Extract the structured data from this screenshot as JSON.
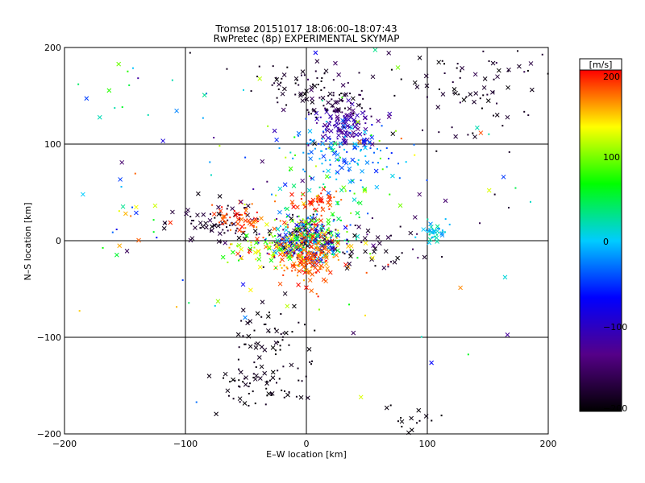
{
  "chart_data": {
    "type": "scatter",
    "title": "Tromsø 20151017 18:06:00–18:07:43",
    "subtitle": "RwPretec (8p) EXPERIMENTAL SKYMAP",
    "xlabel": "E–W location [km]",
    "ylabel": "N–S location [km]",
    "xlim": [
      -200,
      200
    ],
    "ylim": [
      -200,
      200
    ],
    "xticks": [
      "−200",
      "−100",
      "0",
      "100",
      "200"
    ],
    "yticks": [
      "−200",
      "−100",
      "0",
      "100",
      "200"
    ],
    "grid": true,
    "colorbar": {
      "title": "[m/s]",
      "range": [
        -200,
        200
      ],
      "ticks": [
        "200",
        "100",
        "0",
        "−100",
        "−200"
      ],
      "colormap": [
        "#000000",
        "#550088",
        "#0000ff",
        "#00ccff",
        "#00ff00",
        "#ffff00",
        "#ff0000"
      ]
    },
    "marker_types": [
      "x",
      "dot"
    ],
    "clusters": [
      {
        "x": 0,
        "y": 0,
        "sx": 18,
        "sy": 12,
        "n": 420,
        "v": [
          -200,
          200
        ]
      },
      {
        "x": 2,
        "y": -22,
        "sx": 10,
        "sy": 12,
        "n": 140,
        "v": [
          150,
          200
        ]
      },
      {
        "x": 28,
        "y": 120,
        "sx": 14,
        "sy": 10,
        "n": 110,
        "v": [
          -140,
          -100
        ]
      },
      {
        "x": 30,
        "y": 95,
        "sx": 22,
        "sy": 14,
        "n": 90,
        "v": [
          -60,
          10
        ]
      },
      {
        "x": 20,
        "y": 145,
        "sx": 18,
        "sy": 12,
        "n": 70,
        "v": [
          -200,
          -150
        ]
      },
      {
        "x": -10,
        "y": 165,
        "sx": 20,
        "sy": 10,
        "n": 40,
        "v": [
          -200,
          -170
        ]
      },
      {
        "x": 10,
        "y": 42,
        "sx": 10,
        "sy": 6,
        "n": 45,
        "v": [
          170,
          200
        ]
      },
      {
        "x": 15,
        "y": 55,
        "sx": 25,
        "sy": 25,
        "n": 80,
        "v": [
          -40,
          120
        ]
      },
      {
        "x": -70,
        "y": 20,
        "sx": 18,
        "sy": 10,
        "n": 70,
        "v": [
          -200,
          -160
        ]
      },
      {
        "x": -55,
        "y": 20,
        "sx": 12,
        "sy": 8,
        "n": 50,
        "v": [
          160,
          200
        ]
      },
      {
        "x": -45,
        "y": -12,
        "sx": 15,
        "sy": 8,
        "n": 40,
        "v": [
          60,
          200
        ]
      },
      {
        "x": 105,
        "y": 8,
        "sx": 6,
        "sy": 6,
        "n": 40,
        "v": [
          -20,
          30
        ]
      },
      {
        "x": 60,
        "y": -10,
        "sx": 25,
        "sy": 15,
        "n": 40,
        "v": [
          -200,
          -150
        ]
      },
      {
        "x": -30,
        "y": -100,
        "sx": 18,
        "sy": 20,
        "n": 60,
        "v": [
          -200,
          -180
        ]
      },
      {
        "x": -40,
        "y": -150,
        "sx": 20,
        "sy": 12,
        "n": 60,
        "v": [
          -200,
          -180
        ]
      },
      {
        "x": 90,
        "y": -185,
        "sx": 10,
        "sy": 8,
        "n": 15,
        "v": [
          -200,
          -190
        ]
      },
      {
        "x": -160,
        "y": 30,
        "sx": 25,
        "sy": 20,
        "n": 20,
        "v": [
          -100,
          200
        ]
      },
      {
        "x": -130,
        "y": 150,
        "sx": 30,
        "sy": 20,
        "n": 14,
        "v": [
          -60,
          100
        ]
      },
      {
        "x": 130,
        "y": 150,
        "sx": 40,
        "sy": 30,
        "n": 60,
        "v": [
          -200,
          -170
        ]
      },
      {
        "x": 150,
        "y": 180,
        "sx": 30,
        "sy": 15,
        "n": 30,
        "v": [
          -200,
          -160
        ]
      },
      {
        "x": 20,
        "y": 60,
        "sx": 130,
        "sy": 110,
        "n": 120,
        "v": [
          -200,
          200
        ]
      }
    ]
  }
}
